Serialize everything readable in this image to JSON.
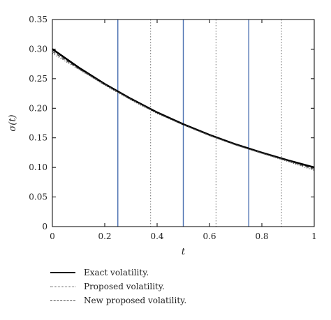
{
  "chart_data": {
    "type": "line",
    "xlabel": "t",
    "ylabel": "σ(t)",
    "xlim": [
      0,
      1
    ],
    "ylim": [
      0,
      0.35
    ],
    "xticks": [
      "0",
      "0.2",
      "0.4",
      "0.6",
      "0.8",
      "1"
    ],
    "yticks": [
      "0",
      "0.05",
      "0.10",
      "0.15",
      "0.20",
      "0.25",
      "0.30",
      "0.35"
    ],
    "x": [
      0,
      0.1,
      0.2,
      0.3,
      0.4,
      0.5,
      0.6,
      0.7,
      0.8,
      0.9,
      1.0
    ],
    "series": [
      {
        "name": "Exact volatility.",
        "style": "solid",
        "color": "#000000",
        "values": [
          0.3,
          0.269,
          0.241,
          0.216,
          0.193,
          0.173,
          0.155,
          0.139,
          0.125,
          0.112,
          0.1
        ]
      },
      {
        "name": "Proposed volatility.",
        "style": "dotted",
        "color": "#555555",
        "values": [
          0.293,
          0.266,
          0.239,
          0.214,
          0.191,
          0.172,
          0.154,
          0.138,
          0.124,
          0.11,
          0.095
        ]
      },
      {
        "name": "New proposed volatility.",
        "style": "dashed",
        "color": "#444444",
        "values": [
          0.296,
          0.267,
          0.24,
          0.215,
          0.192,
          0.172,
          0.154,
          0.138,
          0.124,
          0.111,
          0.097
        ]
      }
    ],
    "vlines_solid": {
      "color": "#4a6fb0",
      "x": [
        0.25,
        0.5,
        0.75
      ]
    },
    "vlines_dotted": {
      "color": "#888888",
      "x": [
        0.375,
        0.625,
        0.875
      ]
    }
  }
}
